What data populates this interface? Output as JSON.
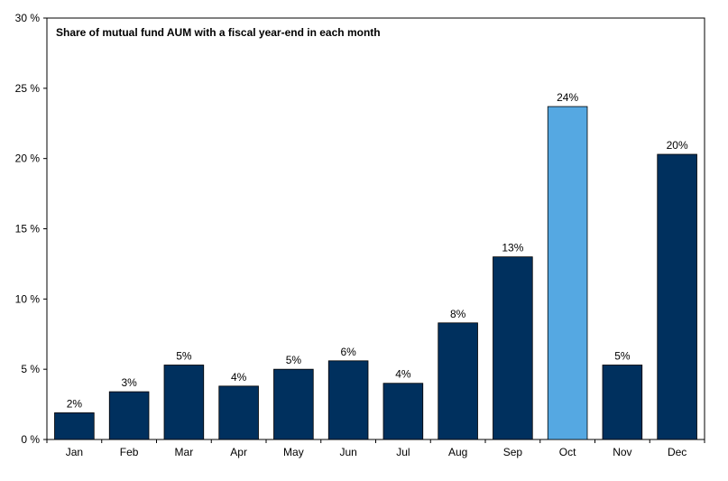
{
  "chart_data": {
    "type": "bar",
    "title": "Share of mutual fund AUM with a fiscal year-end in each month",
    "xlabel": "",
    "ylabel": "",
    "ylim": [
      0,
      30
    ],
    "yticks": [
      0,
      5,
      10,
      15,
      20,
      25,
      30
    ],
    "ytick_labels": [
      "0 %",
      "5 %",
      "10 %",
      "15 %",
      "20 %",
      "25 %",
      "30 %"
    ],
    "categories": [
      "Jan",
      "Feb",
      "Mar",
      "Apr",
      "May",
      "Jun",
      "Jul",
      "Aug",
      "Sep",
      "Oct",
      "Nov",
      "Dec"
    ],
    "values": [
      1.9,
      3.4,
      5.3,
      3.8,
      5.0,
      5.6,
      4.0,
      8.3,
      13.0,
      23.7,
      5.3,
      20.3
    ],
    "data_labels": [
      "2%",
      "3%",
      "5%",
      "4%",
      "5%",
      "6%",
      "4%",
      "8%",
      "13%",
      "24%",
      "5%",
      "20%"
    ],
    "bar_colors": [
      "#00305e",
      "#00305e",
      "#00305e",
      "#00305e",
      "#00305e",
      "#00305e",
      "#00305e",
      "#00305e",
      "#00305e",
      "#55a8e2",
      "#00305e",
      "#00305e"
    ],
    "grid": false,
    "legend": "none"
  }
}
